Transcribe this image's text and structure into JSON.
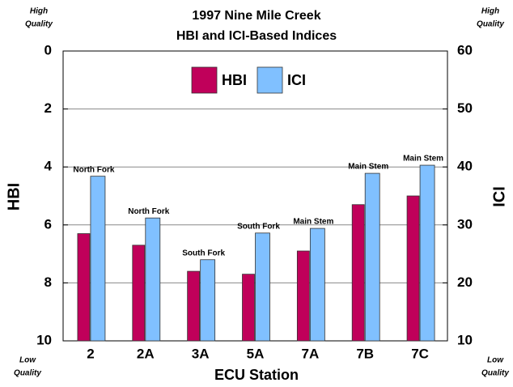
{
  "chart_data": {
    "type": "bar",
    "title": "1997 Nine Mile Creek",
    "subtitle": "HBI and ICI-Based Indices",
    "x_label": "ECU Station",
    "y_label": "HBI",
    "y2_label": "ICI",
    "quality_labels": {
      "high": [
        "High",
        "Quality"
      ],
      "low": [
        "Low",
        "Quality"
      ]
    },
    "categories": [
      "2",
      "2A",
      "3A",
      "5A",
      "7A",
      "7B",
      "7C"
    ],
    "annotations": [
      "North Fork",
      "North Fork",
      "South Fork",
      "South Fork",
      "Main Stem",
      "Main Stem",
      "Main Stem"
    ],
    "series": [
      {
        "name": "HBI",
        "color": "#c0005a",
        "values": [
          6.3,
          6.7,
          7.6,
          7.7,
          6.9,
          5.3,
          5.0
        ]
      },
      {
        "name": "ICI",
        "color": "#80c0ff",
        "axis": "y2",
        "values": [
          38.4,
          31.2,
          24.0,
          28.6,
          29.4,
          38.9,
          40.3
        ]
      }
    ],
    "ylim": [
      10,
      0
    ],
    "yticks": [
      0,
      2,
      4,
      6,
      8,
      10
    ],
    "y2lim": [
      10,
      60
    ],
    "y2ticks": [
      60,
      50,
      40,
      30,
      20,
      10
    ],
    "grid": true,
    "legend": "top"
  }
}
